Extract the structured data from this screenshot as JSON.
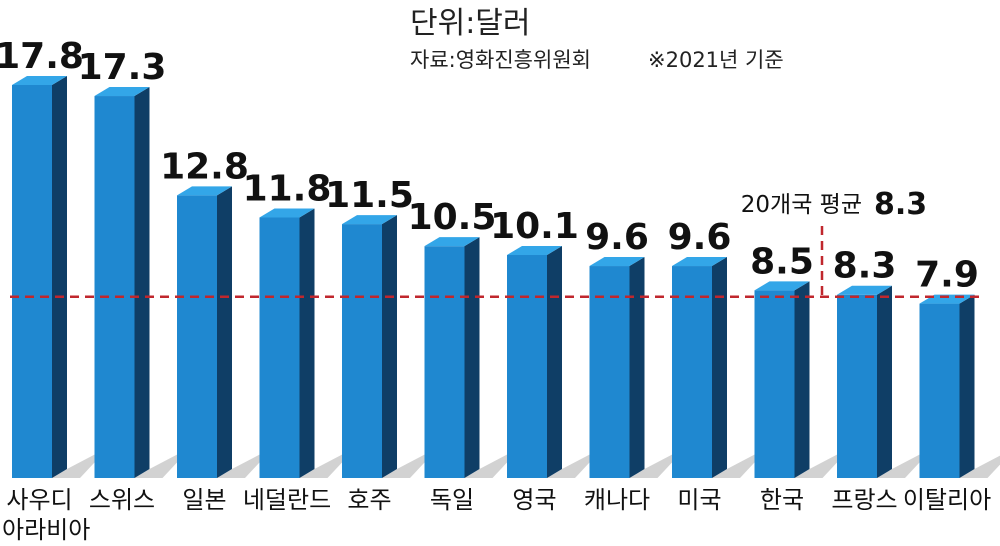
{
  "chart_data": {
    "type": "bar",
    "unit_label": "단위:달러",
    "source_label": "자료:영화진흥위원회",
    "basis_label": "※2021년 기준",
    "categories": [
      [
        "사우디",
        "아라비아"
      ],
      [
        "스위스"
      ],
      [
        "일본"
      ],
      [
        "네덜란드"
      ],
      [
        "호주"
      ],
      [
        "독일"
      ],
      [
        "영국"
      ],
      [
        "캐나다"
      ],
      [
        "미국"
      ],
      [
        "한국"
      ],
      [
        "프랑스"
      ],
      [
        "이탈리아"
      ]
    ],
    "values": [
      17.8,
      17.3,
      12.8,
      11.8,
      11.5,
      10.5,
      10.1,
      9.6,
      9.6,
      8.5,
      8.3,
      7.9
    ],
    "value_labels": [
      "17.8",
      "17.3",
      "12.8",
      "11.8",
      "11.5",
      "10.5",
      "10.1",
      "9.6",
      "9.6",
      "8.5",
      "8.3",
      "7.9"
    ],
    "average": {
      "label": "20개국 평균",
      "value": 8.3,
      "value_label": "8.3"
    },
    "ylim": [
      0,
      17.8
    ],
    "colors": {
      "bar_front": "#1f88d0",
      "bar_top": "#33a6e8",
      "bar_side": "#0f3e66",
      "shadow": "#d2d2d2",
      "average_line": "#c0272d"
    }
  }
}
